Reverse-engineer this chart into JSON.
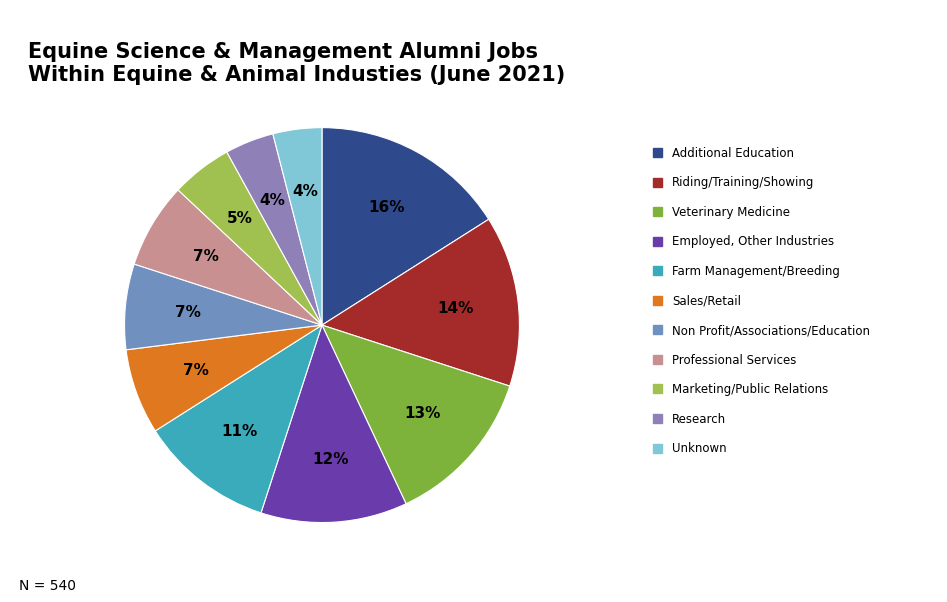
{
  "title": "Equine Science & Management Alumni Jobs\nWithin Equine & Animal Industies (June 2021)",
  "labels": [
    "Additional Education",
    "Riding/Training/Showing",
    "Veterinary Medicine",
    "Employed, Other Industries",
    "Farm Management/Breeding",
    "Sales/Retail",
    "Non Profit/Associations/Education",
    "Professional Services",
    "Marketing/Public Relations",
    "Research",
    "Unknown"
  ],
  "values": [
    16,
    14,
    13,
    12,
    11,
    7,
    7,
    7,
    5,
    4,
    4
  ],
  "colors": [
    "#2E4A8C",
    "#A52A2A",
    "#7DB33A",
    "#6A3BAA",
    "#3AABBA",
    "#E07820",
    "#7090C0",
    "#C89090",
    "#A0C050",
    "#9080B8",
    "#80C8D8"
  ],
  "note": "N = 540",
  "title_fontsize": 15,
  "legend_fontsize": 8.5,
  "label_fontsize": 11
}
